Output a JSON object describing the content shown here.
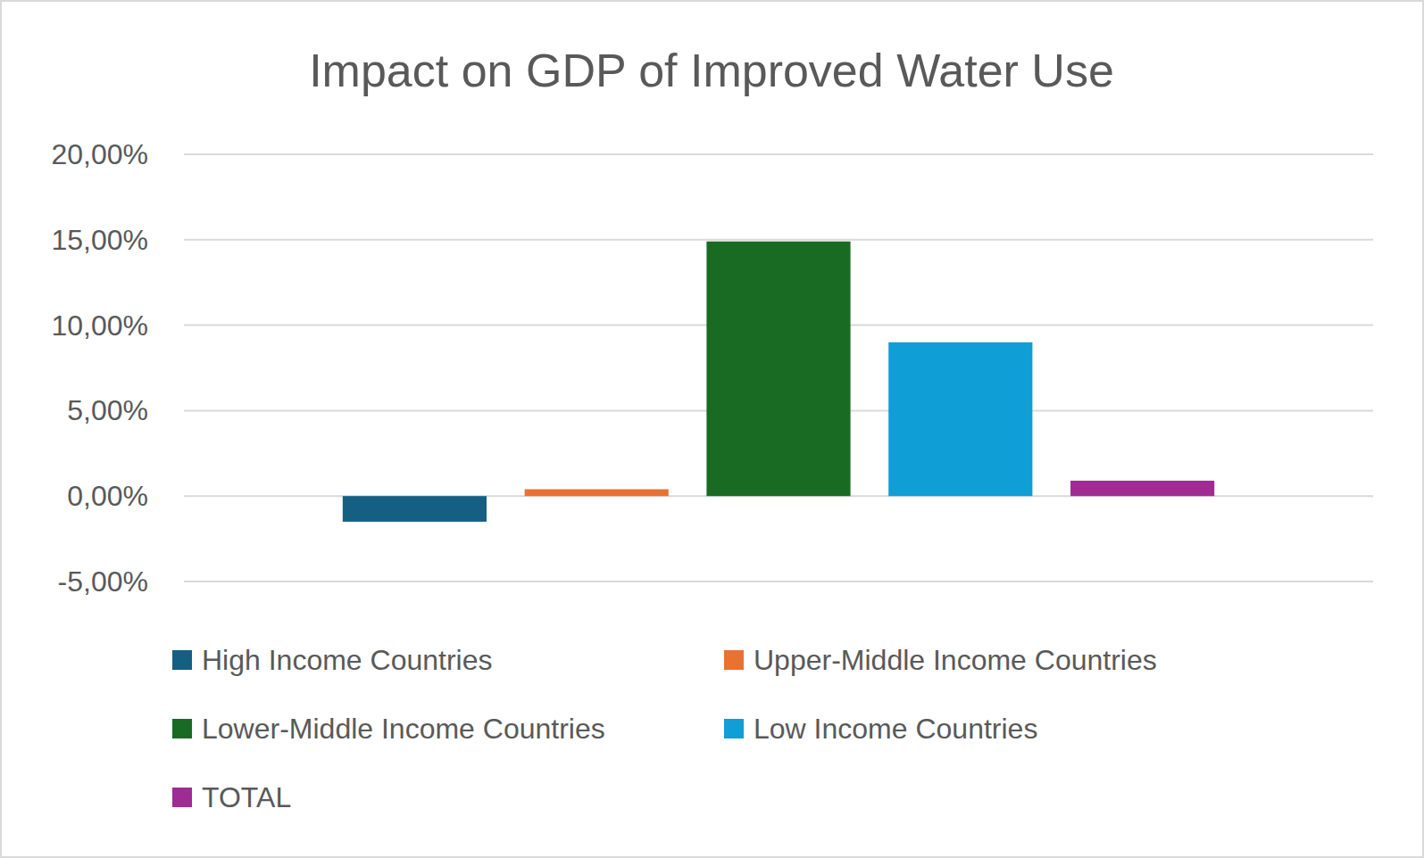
{
  "chart_data": {
    "type": "bar",
    "title": "Impact on GDP of Improved Water Use",
    "categories": [
      null
    ],
    "series": [
      {
        "name": "High Income Countries",
        "color": "#156082",
        "values": [
          -1.5
        ]
      },
      {
        "name": "Upper-Middle Income Countries",
        "color": "#e97132",
        "values": [
          0.4
        ]
      },
      {
        "name": "Lower-Middle Income Countries",
        "color": "#196b24",
        "values": [
          14.9
        ]
      },
      {
        "name": "Low Income Countries",
        "color": "#0f9ed5",
        "values": [
          9.0
        ]
      },
      {
        "name": "TOTAL",
        "color": "#a02b93",
        "values": [
          0.9
        ]
      }
    ],
    "ylim": [
      -5,
      20
    ],
    "yticks": [
      {
        "value": -5,
        "label": "-5,00%"
      },
      {
        "value": 0,
        "label": "0,00%"
      },
      {
        "value": 5,
        "label": "5,00%"
      },
      {
        "value": 10,
        "label": "10,00%"
      },
      {
        "value": 15,
        "label": "15,00%"
      },
      {
        "value": 20,
        "label": "20,00%"
      }
    ],
    "grid": true,
    "legend": "bottom"
  }
}
